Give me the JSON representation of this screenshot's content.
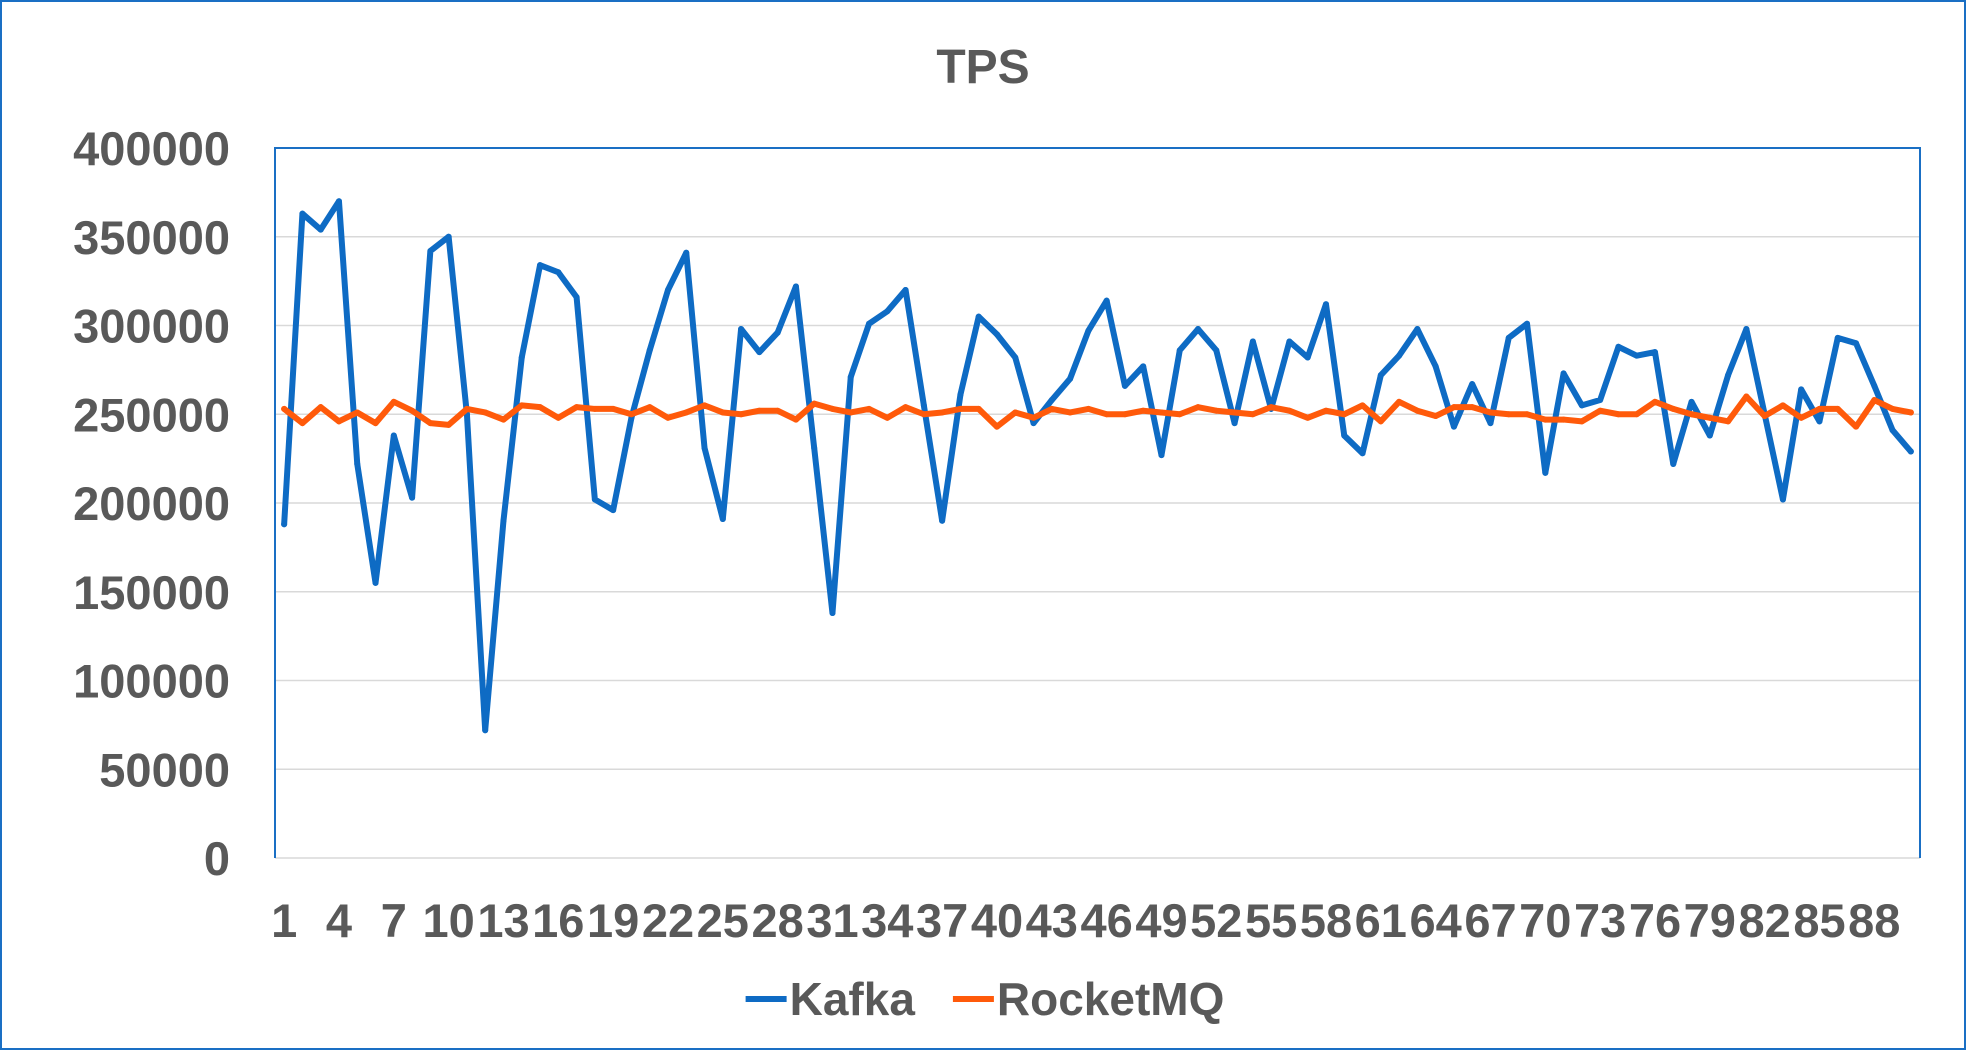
{
  "colors": {
    "frame": "#1A6FC4",
    "gridline": "#D9D9D9",
    "text": "#595959"
  },
  "chart_data": {
    "type": "line",
    "title": "TPS",
    "xlabel": "",
    "ylabel": "",
    "x": [
      1,
      2,
      3,
      4,
      5,
      6,
      7,
      8,
      9,
      10,
      11,
      12,
      13,
      14,
      15,
      16,
      17,
      18,
      19,
      20,
      21,
      22,
      23,
      24,
      25,
      26,
      27,
      28,
      29,
      30,
      31,
      32,
      33,
      34,
      35,
      36,
      37,
      38,
      39,
      40,
      41,
      42,
      43,
      44,
      45,
      46,
      47,
      48,
      49,
      50,
      51,
      52,
      53,
      54,
      55,
      56,
      57,
      58,
      59,
      60,
      61,
      62,
      63,
      64,
      65,
      66,
      67,
      68,
      69,
      70,
      71,
      72,
      73,
      74,
      75,
      76,
      77,
      78,
      79,
      80,
      81,
      82,
      83,
      84,
      85,
      86,
      87,
      88,
      89,
      90
    ],
    "x_tick_labels": [
      "1",
      "4",
      "7",
      "10",
      "13",
      "16",
      "19",
      "22",
      "25",
      "28",
      "31",
      "34",
      "37",
      "40",
      "43",
      "46",
      "49",
      "52",
      "55",
      "58",
      "61",
      "64",
      "67",
      "70",
      "73",
      "76",
      "79",
      "82",
      "85",
      "88"
    ],
    "ylim": [
      0,
      400000
    ],
    "y_ticks": [
      0,
      50000,
      100000,
      150000,
      200000,
      250000,
      300000,
      350000,
      400000
    ],
    "grid": {
      "horizontal": true,
      "vertical": false
    },
    "legend": "bottom",
    "series": [
      {
        "name": "Kafka",
        "color": "#0E6BC4",
        "values": [
          188000,
          363000,
          354000,
          370000,
          222000,
          155000,
          238000,
          203000,
          342000,
          350000,
          250000,
          72000,
          190000,
          282000,
          334000,
          330000,
          316000,
          202000,
          196000,
          248000,
          286000,
          320000,
          341000,
          231000,
          191000,
          298000,
          285000,
          296000,
          322000,
          231000,
          138000,
          271000,
          301000,
          308000,
          320000,
          255000,
          190000,
          261000,
          305000,
          295000,
          282000,
          245000,
          258000,
          270000,
          297000,
          314000,
          266000,
          277000,
          227000,
          286000,
          298000,
          286000,
          245000,
          291000,
          253000,
          291000,
          282000,
          312000,
          238000,
          228000,
          272000,
          283000,
          298000,
          277000,
          243000,
          267000,
          245000,
          293000,
          301000,
          217000,
          273000,
          255000,
          258000,
          288000,
          283000,
          285000,
          222000,
          257000,
          238000,
          272000,
          298000,
          250000,
          202000,
          264000,
          246000,
          293000,
          290000,
          266000,
          241000,
          229000
        ]
      },
      {
        "name": "RocketMQ",
        "color": "#FF5A0A",
        "values": [
          253000,
          245000,
          254000,
          246000,
          251000,
          245000,
          257000,
          252000,
          245000,
          244000,
          253000,
          251000,
          247000,
          255000,
          254000,
          248000,
          254000,
          253000,
          253000,
          250000,
          254000,
          248000,
          251000,
          255000,
          251000,
          250000,
          252000,
          252000,
          247000,
          256000,
          253000,
          251000,
          253000,
          248000,
          254000,
          250000,
          251000,
          253000,
          253000,
          243000,
          251000,
          248000,
          253000,
          251000,
          253000,
          250000,
          250000,
          252000,
          251000,
          250000,
          254000,
          252000,
          251000,
          250000,
          254000,
          252000,
          248000,
          252000,
          250000,
          255000,
          246000,
          257000,
          252000,
          249000,
          254000,
          254000,
          251000,
          250000,
          250000,
          247000,
          247000,
          246000,
          252000,
          250000,
          250000,
          257000,
          253000,
          250000,
          248000,
          246000,
          260000,
          249000,
          255000,
          248000,
          253000,
          253000,
          243000,
          258000,
          253000,
          251000
        ]
      }
    ]
  }
}
